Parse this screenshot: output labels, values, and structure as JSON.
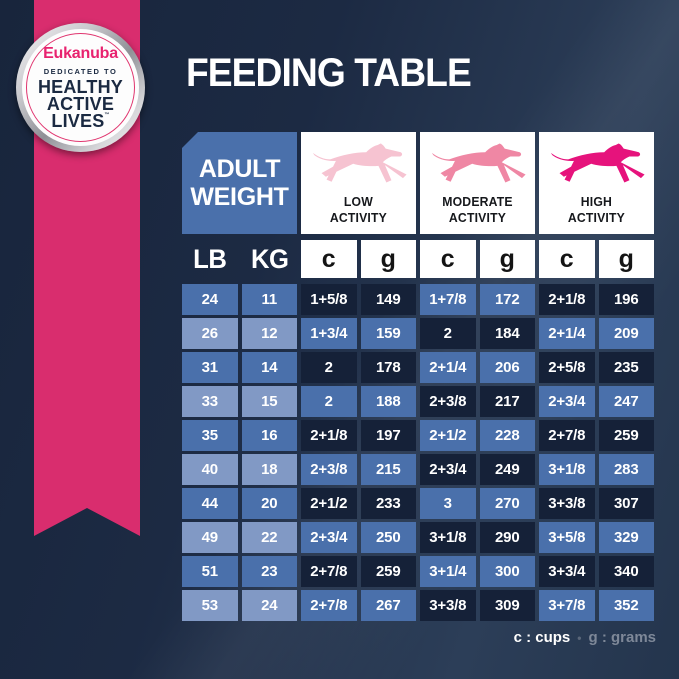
{
  "title": "FEEDING TABLE",
  "badge": {
    "brand": "Eukanuba",
    "tagline": "DEDICATED TO",
    "line1": "HEALTHY",
    "line2": "ACTIVE",
    "line3": "LIVES",
    "tm": "™"
  },
  "table": {
    "corner": {
      "line1": "ADULT",
      "line2": "WEIGHT"
    },
    "activities": [
      {
        "line1": "LOW",
        "line2": "ACTIVITY",
        "dog_color": "#f6c3d1"
      },
      {
        "line1": "MODERATE",
        "line2": "ACTIVITY",
        "dog_color": "#ef87a4"
      },
      {
        "line1": "HIGH",
        "line2": "ACTIVITY",
        "dog_color": "#e6137c"
      }
    ],
    "unit_headers": [
      "LB",
      "KG",
      "c",
      "g",
      "c",
      "g",
      "c",
      "g"
    ]
  },
  "legend": {
    "cups": "c : cups",
    "bullet": "•",
    "grams": "g : grams"
  },
  "colors": {
    "ribbon_pink": "#d92d6e",
    "brand_pink": "#e8226f",
    "cell_medium_blue": "#4a70ab",
    "cell_light_blue": "#8199c5",
    "cell_dark_navy": "#152138",
    "background_navy": "#1c2a43"
  },
  "chart_data": {
    "type": "table",
    "title": "FEEDING TABLE",
    "columns": [
      "Adult Weight LB",
      "Adult Weight KG",
      "Low Activity c (cups)",
      "Low Activity g (grams)",
      "Moderate Activity c (cups)",
      "Moderate Activity g (grams)",
      "High Activity c (cups)",
      "High Activity g (grams)"
    ],
    "rows": [
      [
        "24",
        "11",
        "1+5/8",
        "149",
        "1+7/8",
        "172",
        "2+1/8",
        "196"
      ],
      [
        "26",
        "12",
        "1+3/4",
        "159",
        "2",
        "184",
        "2+1/4",
        "209"
      ],
      [
        "31",
        "14",
        "2",
        "178",
        "2+1/4",
        "206",
        "2+5/8",
        "235"
      ],
      [
        "33",
        "15",
        "2",
        "188",
        "2+3/8",
        "217",
        "2+3/4",
        "247"
      ],
      [
        "35",
        "16",
        "2+1/8",
        "197",
        "2+1/2",
        "228",
        "2+7/8",
        "259"
      ],
      [
        "40",
        "18",
        "2+3/8",
        "215",
        "2+3/4",
        "249",
        "3+1/8",
        "283"
      ],
      [
        "44",
        "20",
        "2+1/2",
        "233",
        "3",
        "270",
        "3+3/8",
        "307"
      ],
      [
        "49",
        "22",
        "2+3/4",
        "250",
        "3+1/8",
        "290",
        "3+5/8",
        "329"
      ],
      [
        "51",
        "23",
        "2+7/8",
        "259",
        "3+1/4",
        "300",
        "3+3/4",
        "340"
      ],
      [
        "53",
        "24",
        "2+7/8",
        "267",
        "3+3/8",
        "309",
        "3+7/8",
        "352"
      ]
    ]
  }
}
